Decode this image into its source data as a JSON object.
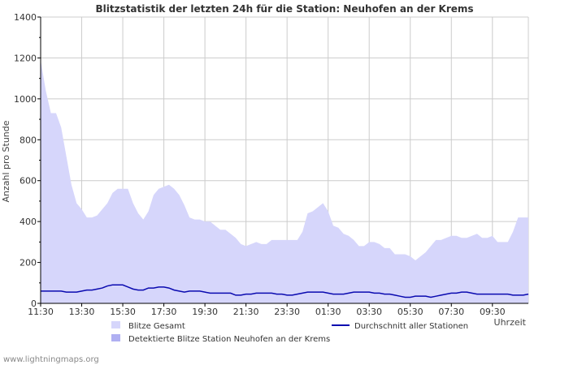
{
  "colors": {
    "area_total": "#d6d6fb",
    "area_detected": "#b0b0f2",
    "line_average": "#0a0ab0",
    "grid": "#cccccc",
    "axis": "#000000"
  },
  "footer": "www.lightningmaps.org",
  "chart_data": {
    "type": "area",
    "title": "Blitzstatistik der letzten 24h für die Station: Neuhofen an der Krems",
    "ylabel": "Anzahl pro Stunde",
    "xlabel": "Uhrzeit",
    "ylim": [
      0,
      1400
    ],
    "yticks": [
      0,
      200,
      400,
      600,
      800,
      1000,
      1200,
      1400
    ],
    "grid": true,
    "x_start": "11:30",
    "x_step_minutes": 15,
    "xtick_labels": [
      "11:30",
      "13:30",
      "15:30",
      "17:30",
      "19:30",
      "21:30",
      "23:30",
      "01:30",
      "03:30",
      "05:30",
      "07:30",
      "09:30"
    ],
    "xtick_every": 8,
    "legend": {
      "total": "Blitze Gesamt",
      "detected": "Detektierte Blitze Station Neuhofen an der Krems",
      "average": "Durchschnitt aller Stationen"
    },
    "series": [
      {
        "name": "Blitze Gesamt",
        "kind": "area",
        "values": [
          1190,
          1040,
          930,
          930,
          860,
          720,
          580,
          490,
          460,
          420,
          420,
          430,
          460,
          490,
          540,
          560,
          560,
          560,
          490,
          440,
          410,
          450,
          530,
          560,
          570,
          580,
          560,
          530,
          480,
          420,
          410,
          410,
          400,
          400,
          380,
          360,
          360,
          340,
          320,
          290,
          280,
          290,
          300,
          290,
          290,
          310,
          310,
          310,
          310,
          310,
          310,
          350,
          440,
          450,
          470,
          490,
          450,
          380,
          370,
          340,
          330,
          310,
          280,
          280,
          300,
          300,
          290,
          270,
          270,
          240,
          240,
          240,
          230,
          210,
          230,
          250,
          280,
          310,
          310,
          320,
          330,
          330,
          320,
          320,
          330,
          340,
          320,
          320,
          330,
          300,
          300,
          300,
          350,
          420,
          420,
          420
        ]
      },
      {
        "name": "Detektierte Blitze Station Neuhofen an der Krems",
        "kind": "area",
        "values": [
          0,
          0,
          0,
          0,
          0,
          0,
          0,
          0,
          0,
          0,
          0,
          0,
          0,
          0,
          0,
          0,
          0,
          0,
          0,
          0,
          0,
          0,
          0,
          0,
          0,
          0,
          0,
          0,
          0,
          0,
          0,
          0,
          0,
          0,
          0,
          0,
          0,
          0,
          0,
          0,
          0,
          0,
          0,
          0,
          0,
          0,
          0,
          0,
          0,
          0,
          0,
          0,
          0,
          0,
          0,
          0,
          0,
          0,
          0,
          0,
          0,
          0,
          0,
          0,
          0,
          0,
          0,
          0,
          0,
          0,
          0,
          0,
          0,
          0,
          0,
          0,
          0,
          0,
          0,
          0,
          0,
          0,
          0,
          0,
          0,
          0,
          0,
          0,
          0,
          0,
          0,
          0,
          0,
          0,
          0,
          0
        ]
      },
      {
        "name": "Durchschnitt aller Stationen",
        "kind": "line",
        "values": [
          60,
          60,
          60,
          60,
          60,
          55,
          55,
          55,
          60,
          65,
          65,
          70,
          75,
          85,
          90,
          90,
          90,
          80,
          70,
          65,
          65,
          75,
          75,
          80,
          80,
          75,
          65,
          60,
          55,
          60,
          60,
          60,
          55,
          50,
          50,
          50,
          50,
          50,
          40,
          40,
          45,
          45,
          50,
          50,
          50,
          50,
          45,
          45,
          40,
          40,
          45,
          50,
          55,
          55,
          55,
          55,
          50,
          45,
          45,
          45,
          50,
          55,
          55,
          55,
          55,
          50,
          50,
          45,
          45,
          40,
          35,
          30,
          30,
          35,
          35,
          35,
          30,
          35,
          40,
          45,
          50,
          50,
          55,
          55,
          50,
          45,
          45,
          45,
          45,
          45,
          45,
          45,
          40,
          40,
          40,
          45
        ]
      }
    ]
  }
}
